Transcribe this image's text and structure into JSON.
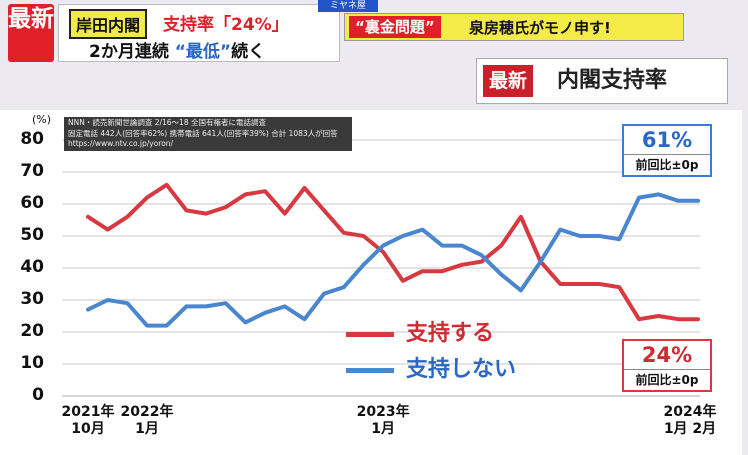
{
  "header": {
    "badge": "最新",
    "tag": "岸田内閣",
    "line1_prefix": "支持率「",
    "line1_value": "24%",
    "line1_suffix": "」",
    "line2_prefix": "2か月連続 ",
    "line2_highlight": "“最低”",
    "line2_suffix": "続く",
    "program": "ミヤネ屋"
  },
  "side_banner": {
    "tag": "“裏金問題”",
    "text": "泉房穂氏がモノ申す!"
  },
  "title_box": {
    "badge": "最新",
    "text": "内閣支持率"
  },
  "source": {
    "line1": "NNN・読売新聞世論調査 2/16〜18 全国有権者に電話調査",
    "line2": "固定電話 442人(回答率62%) 携帯電話 641人(回答率39%) 合計 1083人が回答",
    "line3": "https://www.ntv.co.jp/yoron/"
  },
  "colors": {
    "support": "#d83840",
    "nonsupport": "#4a86d0",
    "grid": "#c8c8c8"
  },
  "chart_data": {
    "type": "line",
    "ylabel": "(%)",
    "ylim": [
      0,
      80
    ],
    "yticks": [
      "0",
      "10",
      "20",
      "30",
      "40",
      "50",
      "60",
      "70",
      "80"
    ],
    "x_tick_labels": [
      {
        "month_index": 0,
        "line1": "2021年",
        "line2": "10月"
      },
      {
        "month_index": 3,
        "line1": "2022年",
        "line2": "1月"
      },
      {
        "month_index": 15,
        "line1": "2023年",
        "line2": "1月"
      },
      {
        "month_index": 28,
        "line1": "2024年",
        "line2": "1月 2月"
      }
    ],
    "series": [
      {
        "name": "支持する",
        "color": "#d83840",
        "values": [
          56,
          52,
          56,
          62,
          66,
          58,
          57,
          59,
          63,
          64,
          57,
          65,
          58,
          51,
          50,
          45,
          36,
          39,
          39,
          41,
          42,
          47,
          56,
          42,
          35,
          35,
          35,
          34,
          24,
          25,
          24,
          24
        ]
      },
      {
        "name": "支持しない",
        "color": "#4a86d0",
        "values": [
          27,
          30,
          29,
          22,
          22,
          28,
          28,
          29,
          23,
          26,
          28,
          24,
          32,
          34,
          41,
          47,
          50,
          52,
          47,
          47,
          44,
          38,
          33,
          42,
          52,
          50,
          50,
          49,
          62,
          63,
          61,
          61
        ]
      }
    ],
    "callouts": [
      {
        "series": "支持しない",
        "value": "61%",
        "sub": "前回比±0p"
      },
      {
        "series": "支持する",
        "value": "24%",
        "sub": "前回比±0p"
      }
    ]
  }
}
